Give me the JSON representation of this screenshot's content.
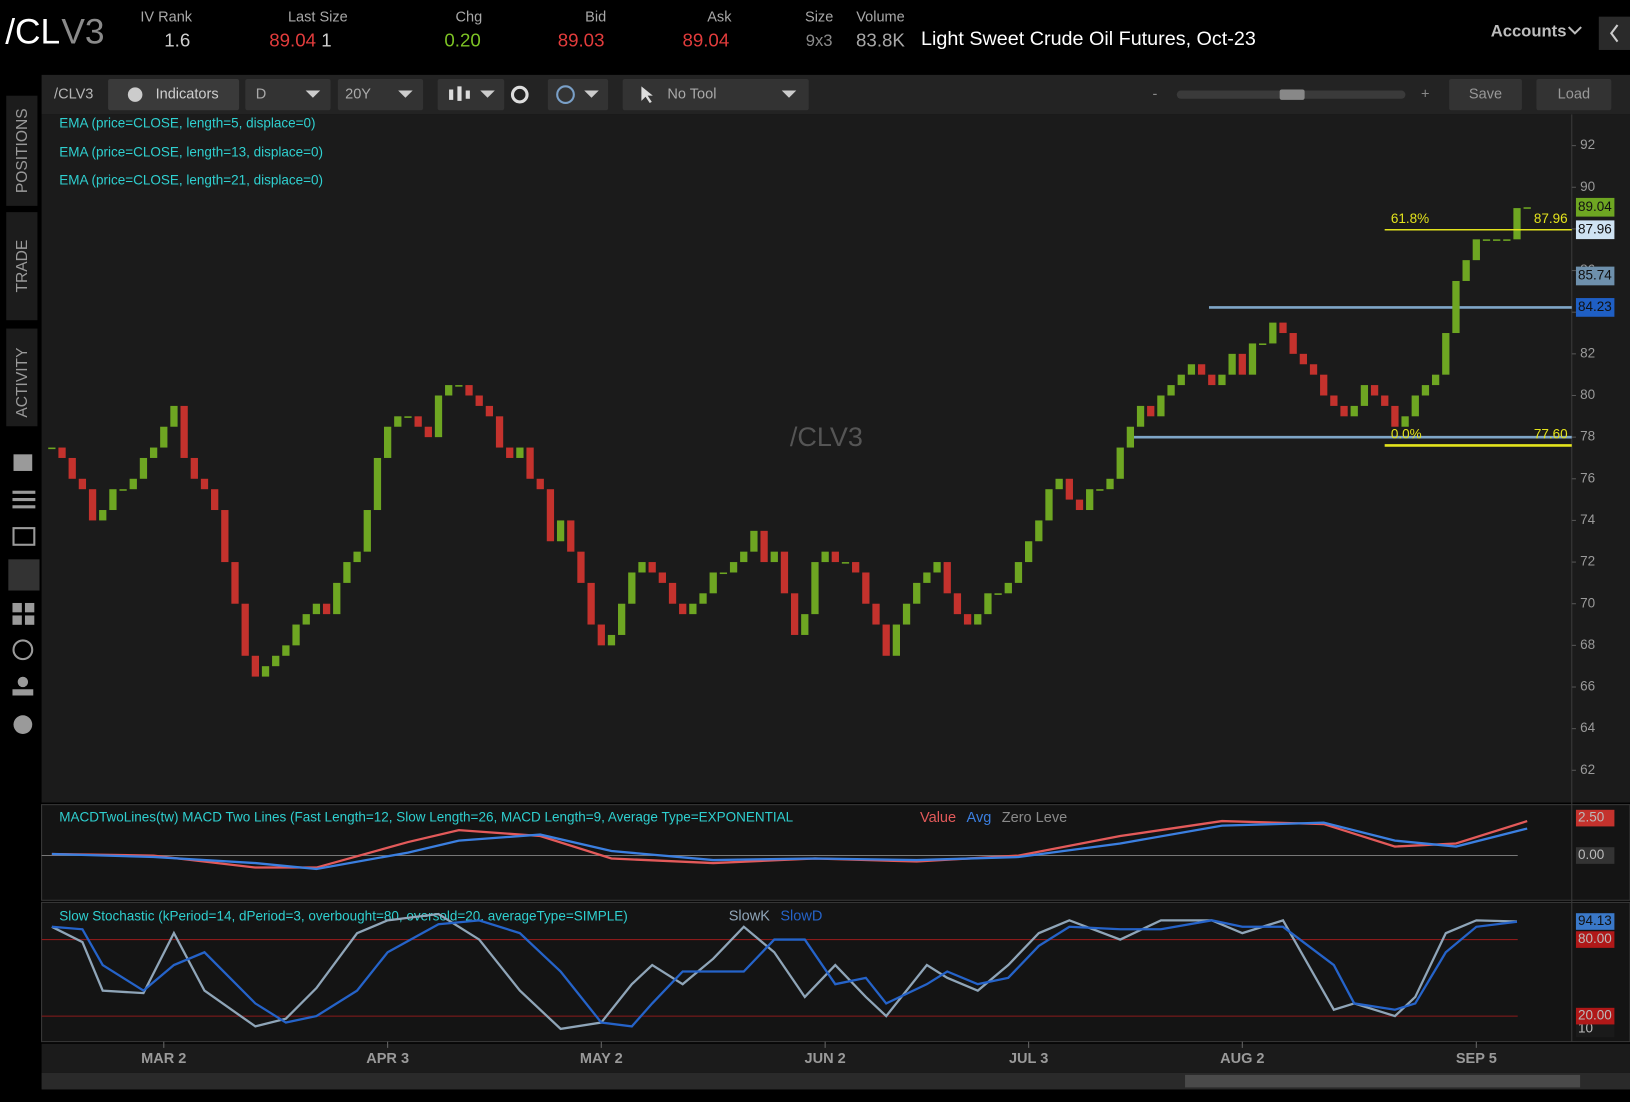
{
  "header": {
    "symbol_root": "/CL",
    "symbol_month": "V3",
    "iv_rank_label": "IV Rank",
    "iv_rank": "1.6",
    "last_size_label": "Last Size",
    "last": "89.04",
    "last_size": "1",
    "chg_label": "Chg",
    "chg": "0.20",
    "bid_label": "Bid",
    "bid": "89.03",
    "ask_label": "Ask",
    "ask": "89.04",
    "size_label": "Size",
    "size": "9x3",
    "volume_label": "Volume",
    "volume": "83.8K",
    "description": "Light Sweet Crude Oil Futures, Oct-23",
    "accounts": "Accounts"
  },
  "toolbar": {
    "symbol": "/CLV3",
    "indicators": "Indicators",
    "aggregation": "D",
    "time_frame": "20Y",
    "tool": "No Tool",
    "zoom_out": "-",
    "zoom_in": "+",
    "save": "Save",
    "load": "Load"
  },
  "side_tabs": [
    "POSITIONS",
    "TRADE",
    "ACTIVITY"
  ],
  "price_chart": {
    "type": "candlestick",
    "watermark": "/CLV3",
    "studies": [
      "EMA (price=CLOSE, length=5, displace=0)",
      "EMA (price=CLOSE, length=13, displace=0)",
      "EMA (price=CLOSE, length=21, displace=0)"
    ],
    "close": [
      77.5,
      77,
      76,
      75.5,
      74,
      74.5,
      75.5,
      75.5,
      76,
      77,
      77.5,
      78.5,
      79.5,
      77,
      76,
      75.5,
      74.5,
      72,
      70,
      67.5,
      66.5,
      67,
      67.5,
      68,
      69,
      69.5,
      70,
      69.5,
      71,
      72,
      72.5,
      74.5,
      77,
      78.5,
      79,
      79,
      78.5,
      78,
      80,
      80.5,
      80.5,
      80,
      79.5,
      79,
      77.5,
      77,
      77.5,
      76,
      75.5,
      73,
      74,
      72.5,
      71,
      69,
      68,
      68.5,
      70,
      71.5,
      72,
      71.5,
      71,
      70,
      69.5,
      70,
      70.5,
      71.5,
      71.5,
      72,
      72.5,
      73.5,
      72,
      72.5,
      70.5,
      68.5,
      69.5,
      72,
      72.5,
      72,
      72,
      71.5,
      70,
      69,
      67.5,
      69,
      70,
      71,
      71.5,
      72,
      70.5,
      69.5,
      69,
      69.5,
      70.5,
      70.5,
      71,
      72,
      73,
      74,
      75.5,
      76,
      75,
      74.5,
      75.5,
      75.5,
      76,
      77.5,
      78.5,
      79.5,
      79,
      80,
      80.5,
      81,
      81.5,
      81,
      80.5,
      81,
      82,
      81,
      82.5,
      82.5,
      83.5,
      83,
      82,
      81.5,
      81,
      80,
      79.5,
      79,
      79.5,
      80.5,
      80,
      79.5,
      78.5,
      79,
      80,
      80.5,
      81,
      83,
      85.5,
      86.5,
      87.5,
      87.5,
      87.5,
      87.5,
      89,
      89.04
    ],
    "up_color": "#6ea622",
    "down_color": "#c4322d",
    "xlim": [
      -0.5,
      145.5
    ],
    "xticks": [
      {
        "value": 11,
        "label": "MAR 2"
      },
      {
        "value": 33,
        "label": "APR 3"
      },
      {
        "value": 54,
        "label": "MAY 2"
      },
      {
        "value": 76,
        "label": "JUN 2"
      },
      {
        "value": 96,
        "label": "JUL 3"
      },
      {
        "value": 117,
        "label": "AUG 2"
      },
      {
        "value": 140,
        "label": "SEP 5"
      }
    ],
    "ylim": [
      60.55,
      93.5
    ],
    "yticks": [
      62,
      64,
      66,
      68,
      70,
      72,
      74,
      76,
      78,
      80,
      82,
      84,
      86,
      88,
      90,
      92
    ],
    "levels": [
      84.23,
      78
    ],
    "level_color": "#7fa6c8",
    "fib_names": [
      "61.8%",
      "0.0%"
    ],
    "fib_levels": [
      87.96,
      77.6
    ],
    "fib_value_labels": [
      "87.96",
      "77.60"
    ],
    "fib_color": "#e3e31c",
    "price_labels": [
      89.04,
      87.96,
      85.74,
      84.23
    ],
    "price_label_colors": [
      "#6ea622",
      "#cfe3f3",
      "#6e90ac",
      "#1f5fc4"
    ],
    "price_label_text_colors": [
      "#111",
      "#111",
      "#111",
      "#111"
    ]
  },
  "macd": {
    "title": "MACDTwoLines(tw) MACD Two Lines (Fast Length=12, Slow Length=26, MACD Length=9, Average Type=EXPONENTIAL",
    "legend": [
      "Value",
      "Avg",
      "Zero Leve"
    ],
    "legend_colors": [
      "#e35a5a",
      "#3b7fe0",
      "#8a8a8a"
    ],
    "x": [
      0,
      10,
      20,
      26,
      35,
      40,
      48,
      55,
      65,
      75,
      85,
      95,
      105,
      115,
      125,
      132,
      138,
      145
    ],
    "value": [
      0.1,
      0.0,
      -0.8,
      -0.8,
      0.9,
      1.7,
      1.3,
      -0.2,
      -0.5,
      -0.2,
      -0.4,
      0.0,
      1.3,
      2.3,
      2.1,
      0.6,
      0.8,
      2.3
    ],
    "avg": [
      0.1,
      -0.1,
      -0.5,
      -0.9,
      0.2,
      1.0,
      1.4,
      0.3,
      -0.3,
      -0.2,
      -0.3,
      -0.1,
      0.8,
      2.0,
      2.2,
      1.0,
      0.6,
      1.8
    ],
    "ylim": [
      -2.92,
      3.33
    ],
    "yticks": [
      {
        "value": 0,
        "label": "0.00"
      },
      {
        "value": 2.5,
        "label": "2.50"
      }
    ],
    "tick_lines": [
      true,
      false
    ],
    "tick_bg": [
      "#333333",
      "#c4322d"
    ]
  },
  "stochastic": {
    "title": "Slow Stochastic (kPeriod=14, dPeriod=3, overbought=80, oversold=20, averageType=SIMPLE)",
    "legend": [
      "SlowK",
      "SlowD"
    ],
    "legend_colors": [
      "#8fa5b8",
      "#2563c9"
    ],
    "x": [
      0,
      3,
      5,
      9,
      12,
      15,
      20,
      23,
      26,
      30,
      33,
      38,
      42,
      46,
      50,
      54,
      57,
      59,
      62,
      65,
      68,
      71,
      74,
      77,
      80,
      82,
      86,
      88,
      91,
      94,
      97,
      100,
      105,
      109,
      114,
      117,
      121,
      126,
      128,
      132,
      134,
      137,
      140,
      144
    ],
    "slowk": [
      90,
      78,
      40,
      38,
      85,
      40,
      12,
      18,
      42,
      85,
      95,
      100,
      80,
      40,
      10,
      15,
      45,
      60,
      45,
      65,
      90,
      70,
      35,
      60,
      35,
      20,
      60,
      50,
      40,
      60,
      85,
      95,
      80,
      95,
      95,
      85,
      95,
      25,
      30,
      20,
      35,
      85,
      95,
      94.13
    ],
    "slowd": [
      90,
      88,
      60,
      40,
      60,
      70,
      30,
      15,
      20,
      40,
      70,
      92,
      95,
      85,
      55,
      15,
      12,
      30,
      55,
      55,
      55,
      80,
      80,
      45,
      50,
      30,
      45,
      55,
      45,
      50,
      75,
      90,
      88,
      88,
      95,
      90,
      90,
      60,
      30,
      25,
      30,
      70,
      90,
      94
    ],
    "ylim": [
      0,
      107.5
    ],
    "yticks": [
      10,
      {
        "value": 20,
        "label": "20.00"
      },
      {
        "value": 80,
        "label": "80.00"
      }
    ],
    "tick_lines": [
      false,
      true,
      true
    ],
    "tick_bg": [
      "#1a1a1a",
      "#b01818",
      "#b01818"
    ],
    "last_value": 94.13
  }
}
